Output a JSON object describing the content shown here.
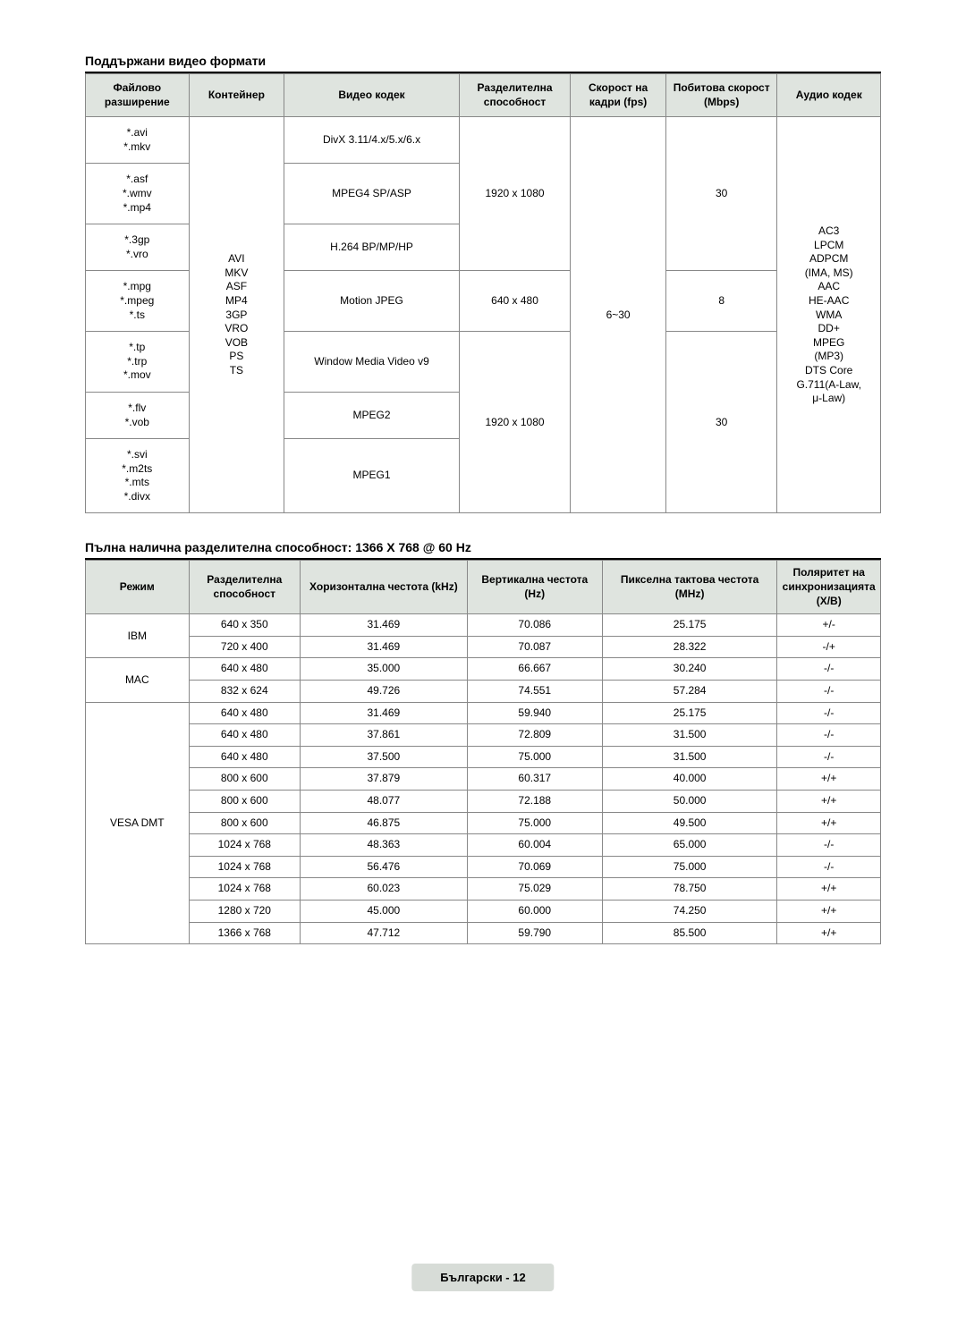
{
  "section1": {
    "title": "Поддържани видео формати",
    "headers": [
      "Файлово разширение",
      "Контейнер",
      "Видео кодек",
      "Разделителна способност",
      "Скорост на кадри (fps)",
      "Побитова скорост (Mbps)",
      "Аудио кодек"
    ],
    "ext": {
      "r1": "*.avi\n*.mkv",
      "r2": "*.asf\n*.wmv\n*.mp4",
      "r3": "*.3gp\n*.vro",
      "r4": "*.mpg\n*.mpeg\n*.ts",
      "r5": "*.tp\n*.trp\n*.mov",
      "r6": "*.flv\n*.vob",
      "r7": "*.svi\n*.m2ts\n*.mts\n*.divx"
    },
    "container": "AVI\nMKV\nASF\nMP4\n3GP\nVRO\nVOB\nPS\nTS",
    "codec": {
      "c1": "DivX 3.11/4.x/5.x/6.x",
      "c2": "MPEG4 SP/ASP",
      "c3": "H.264 BP/MP/HP",
      "c4": "Motion JPEG",
      "c5": "Window Media Video v9",
      "c6": "MPEG2",
      "c7": "MPEG1"
    },
    "res": {
      "r1": "1920 x 1080",
      "r2": "640 x 480",
      "r3": "1920 x 1080"
    },
    "fps": "6~30",
    "bitrate": {
      "b1": "30",
      "b2": "8",
      "b3": "30"
    },
    "audio": "AC3\nLPCM\nADPCM\n(IMA, MS)\nAAC\nHE-AAC\nWMA\nDD+\nMPEG\n(MP3)\nDTS Core\nG.711(A-Law,\nμ-Law)"
  },
  "section2": {
    "title": "Пълна налична разделителна способност: 1366 X 768 @ 60 Hz",
    "headers": [
      "Режим",
      "Разделителна способност",
      "Хоризонтална честота (kHz)",
      "Вертикална честота (Hz)",
      "Пикселна тактова честота (MHz)",
      "Поляритет на синхронизацията (X/B)"
    ],
    "modes": {
      "ibm": "IBM",
      "mac": "MAC",
      "vesa": "VESA DMT"
    },
    "rows": {
      "ibm1": [
        "640 x 350",
        "31.469",
        "70.086",
        "25.175",
        "+/-"
      ],
      "ibm2": [
        "720 x 400",
        "31.469",
        "70.087",
        "28.322",
        "-/+"
      ],
      "mac1": [
        "640 x 480",
        "35.000",
        "66.667",
        "30.240",
        "-/-"
      ],
      "mac2": [
        "832 x 624",
        "49.726",
        "74.551",
        "57.284",
        "-/-"
      ],
      "v1": [
        "640 x 480",
        "31.469",
        "59.940",
        "25.175",
        "-/-"
      ],
      "v2": [
        "640 x 480",
        "37.861",
        "72.809",
        "31.500",
        "-/-"
      ],
      "v3": [
        "640 x 480",
        "37.500",
        "75.000",
        "31.500",
        "-/-"
      ],
      "v4": [
        "800 x 600",
        "37.879",
        "60.317",
        "40.000",
        "+/+"
      ],
      "v5": [
        "800 x 600",
        "48.077",
        "72.188",
        "50.000",
        "+/+"
      ],
      "v6": [
        "800 x 600",
        "46.875",
        "75.000",
        "49.500",
        "+/+"
      ],
      "v7": [
        "1024 x 768",
        "48.363",
        "60.004",
        "65.000",
        "-/-"
      ],
      "v8": [
        "1024 x 768",
        "56.476",
        "70.069",
        "75.000",
        "-/-"
      ],
      "v9": [
        "1024 x 768",
        "60.023",
        "75.029",
        "78.750",
        "+/+"
      ],
      "v10": [
        "1280 x 720",
        "45.000",
        "60.000",
        "74.250",
        "+/+"
      ],
      "v11": [
        "1366 x 768",
        "47.712",
        "59.790",
        "85.500",
        "+/+"
      ]
    }
  },
  "footer": "Български - 12"
}
